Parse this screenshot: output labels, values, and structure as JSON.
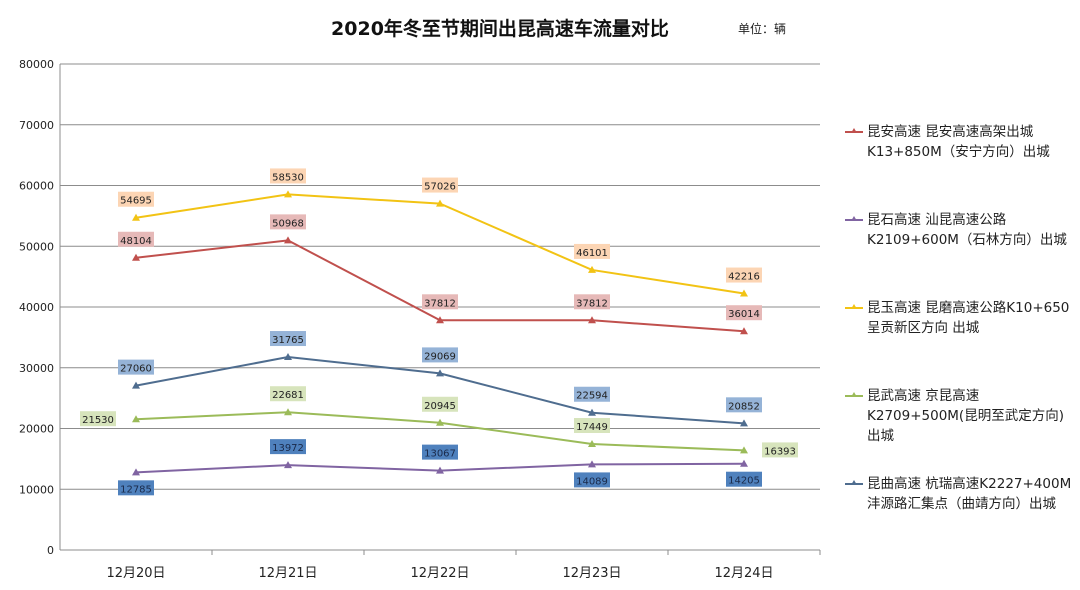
{
  "chart_data": {
    "type": "line",
    "title": "2020年冬至节期间出昆高速车流量对比",
    "unit": "单位：辆",
    "categories": [
      "12月20日",
      "12月21日",
      "12月22日",
      "12月23日",
      "12月24日"
    ],
    "ylim": [
      0,
      80000
    ],
    "yticks": [
      0,
      10000,
      20000,
      30000,
      40000,
      50000,
      60000,
      70000,
      80000
    ],
    "grid": true,
    "legend_position": "right",
    "series": [
      {
        "name": "昆安高速 昆安高速高架出城K13+850M（安宁方向）出城",
        "color": "#c0504d",
        "label_bg": "#e6b9b8",
        "values": [
          48104,
          50968,
          37812,
          37812,
          36014
        ]
      },
      {
        "name": "昆石高速 汕昆高速公路K2109+600M（石林方向）出城",
        "color": "#8064a2",
        "label_bg": "#4f81bd",
        "values": [
          12785,
          13972,
          13067,
          14089,
          14205
        ]
      },
      {
        "name": "昆玉高速 昆磨高速公路K10+650呈贡新区方向 出城",
        "color": "#f2c314",
        "label_bg": "#fcd5b4",
        "values": [
          54695,
          58530,
          57026,
          46101,
          42216
        ]
      },
      {
        "name": "昆武高速 京昆高速K2709+500M(昆明至武定方向) 出城",
        "color": "#9bbb59",
        "label_bg": "#d7e4bc",
        "values": [
          21530,
          22681,
          20945,
          17449,
          16393
        ]
      },
      {
        "name": "昆曲高速 杭瑞高速K2227+400M沣源路汇集点（曲靖方向）出城",
        "color": "#4f6d8f",
        "label_bg": "#95b3d7",
        "values": [
          27060,
          31765,
          29069,
          22594,
          20852
        ]
      }
    ]
  }
}
